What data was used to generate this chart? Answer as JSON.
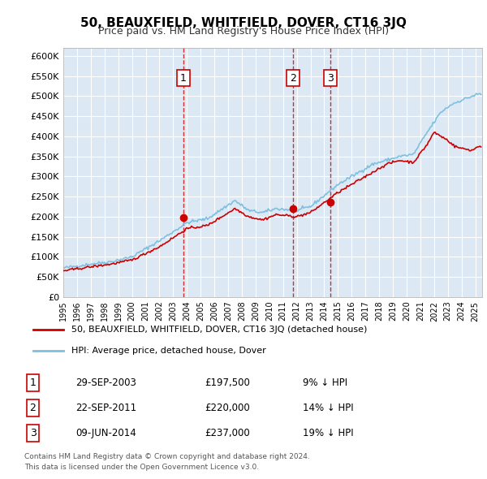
{
  "title": "50, BEAUXFIELD, WHITFIELD, DOVER, CT16 3JQ",
  "subtitle": "Price paid vs. HM Land Registry's House Price Index (HPI)",
  "ylabel_ticks": [
    "£0",
    "£50K",
    "£100K",
    "£150K",
    "£200K",
    "£250K",
    "£300K",
    "£350K",
    "£400K",
    "£450K",
    "£500K",
    "£550K",
    "£600K"
  ],
  "ylim": [
    0,
    620000
  ],
  "xlim_start": 1995.0,
  "xlim_end": 2025.5,
  "background_color": "#dce9f5",
  "plot_bg_color": "#dce9f5",
  "grid_color": "#ffffff",
  "legend_label_red": "50, BEAUXFIELD, WHITFIELD, DOVER, CT16 3JQ (detached house)",
  "legend_label_blue": "HPI: Average price, detached house, Dover",
  "transactions": [
    {
      "num": 1,
      "date_label": "29-SEP-2003",
      "price": 197500,
      "pct": "9%",
      "year": 2003.75
    },
    {
      "num": 2,
      "date_label": "22-SEP-2011",
      "price": 220000,
      "pct": "14%",
      "year": 2011.72
    },
    {
      "num": 3,
      "date_label": "09-JUN-2014",
      "price": 237000,
      "pct": "19%",
      "year": 2014.44
    }
  ],
  "footer_line1": "Contains HM Land Registry data © Crown copyright and database right 2024.",
  "footer_line2": "This data is licensed under the Open Government Licence v3.0.",
  "hpi_color": "#7fbfdf",
  "price_color": "#cc0000",
  "transaction_marker_color": "#cc0000",
  "dashed_line_color": "#cc0000"
}
